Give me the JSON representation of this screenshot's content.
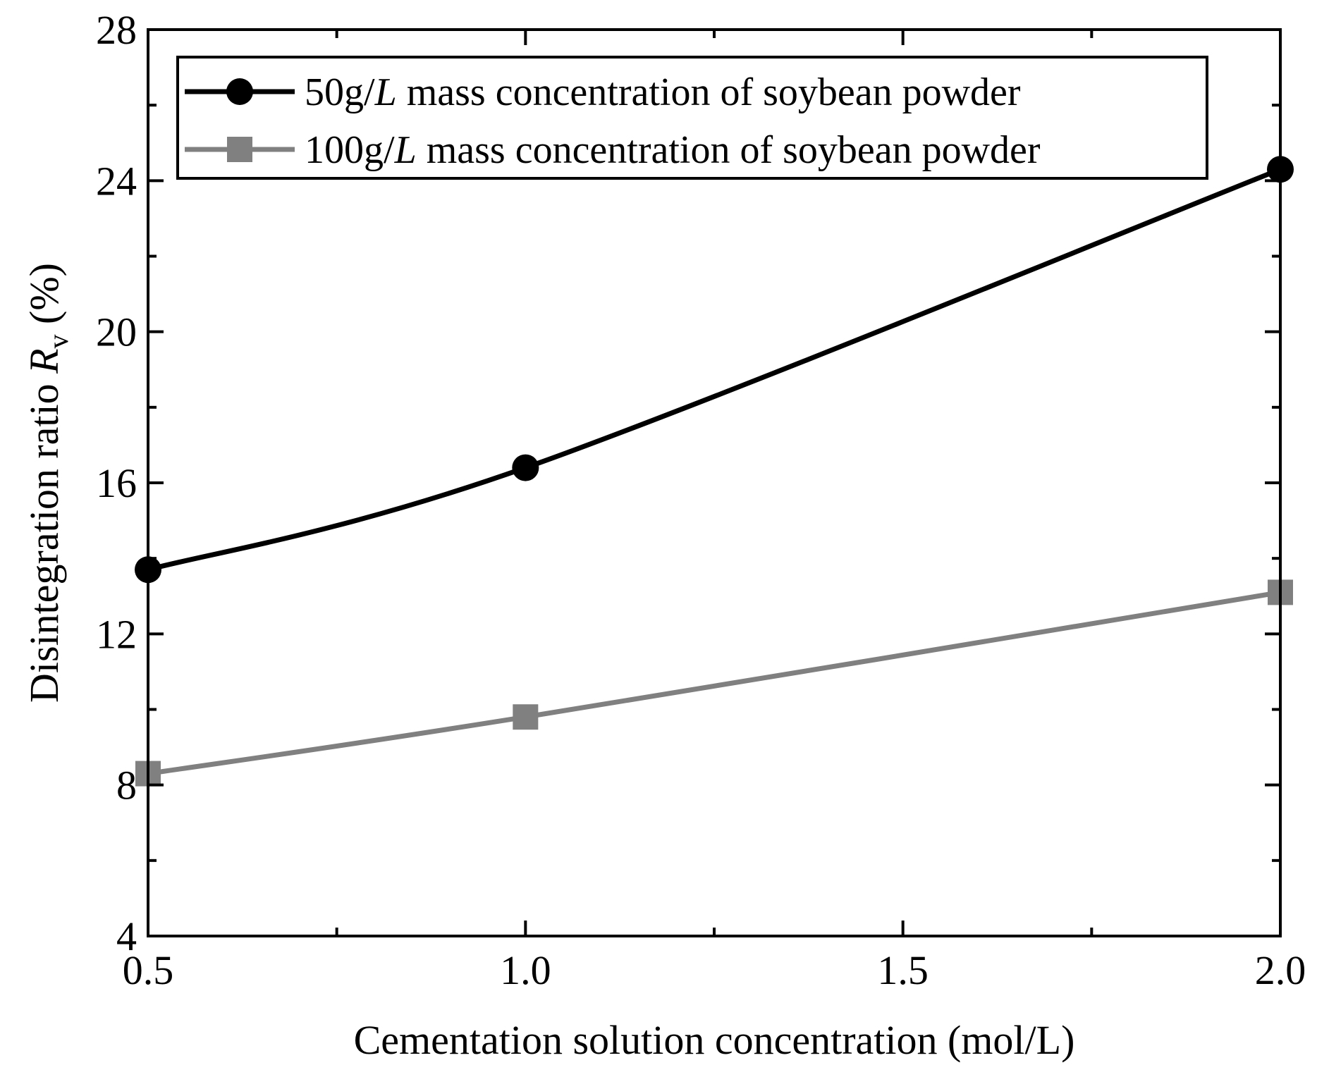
{
  "chart_data": {
    "type": "line",
    "title": "",
    "xlabel": "Cementation solution concentration (mol/L)",
    "ylabel": {
      "prefix": "Disintegration ratio ",
      "symbol": "R",
      "subscript": "v",
      "suffix": " (%)"
    },
    "xlim": [
      0.5,
      2.0
    ],
    "ylim": [
      4,
      28
    ],
    "x_ticks": [
      0.5,
      1.0,
      1.5,
      2.0
    ],
    "x_tick_labels": [
      "0.5",
      "1.0",
      "1.5",
      "2.0"
    ],
    "x_minor_ticks": [
      0.75,
      1.25,
      1.75
    ],
    "y_ticks": [
      4,
      8,
      12,
      16,
      20,
      24,
      28
    ],
    "y_tick_labels": [
      "4",
      "8",
      "12",
      "16",
      "20",
      "24",
      "28"
    ],
    "y_minor_ticks": [
      6,
      10,
      14,
      18,
      22,
      26
    ],
    "grid": false,
    "legend_position": "top",
    "series": [
      {
        "name": "50g/L mass concentration of soybean powder",
        "legend": {
          "prefix": "50g/",
          "italic": "L",
          "suffix": " mass concentration of soybean powder"
        },
        "marker": "circle",
        "color": "#000000",
        "x": [
          0.5,
          1.0,
          2.0
        ],
        "values": [
          13.7,
          16.4,
          24.3
        ]
      },
      {
        "name": "100g/L mass concentration of soybean powder",
        "legend": {
          "prefix": "100g/",
          "italic": "L",
          "suffix": " mass concentration of soybean powder"
        },
        "marker": "square",
        "color": "#808080",
        "x": [
          0.5,
          1.0,
          2.0
        ],
        "values": [
          8.3,
          9.8,
          13.1
        ]
      }
    ]
  }
}
